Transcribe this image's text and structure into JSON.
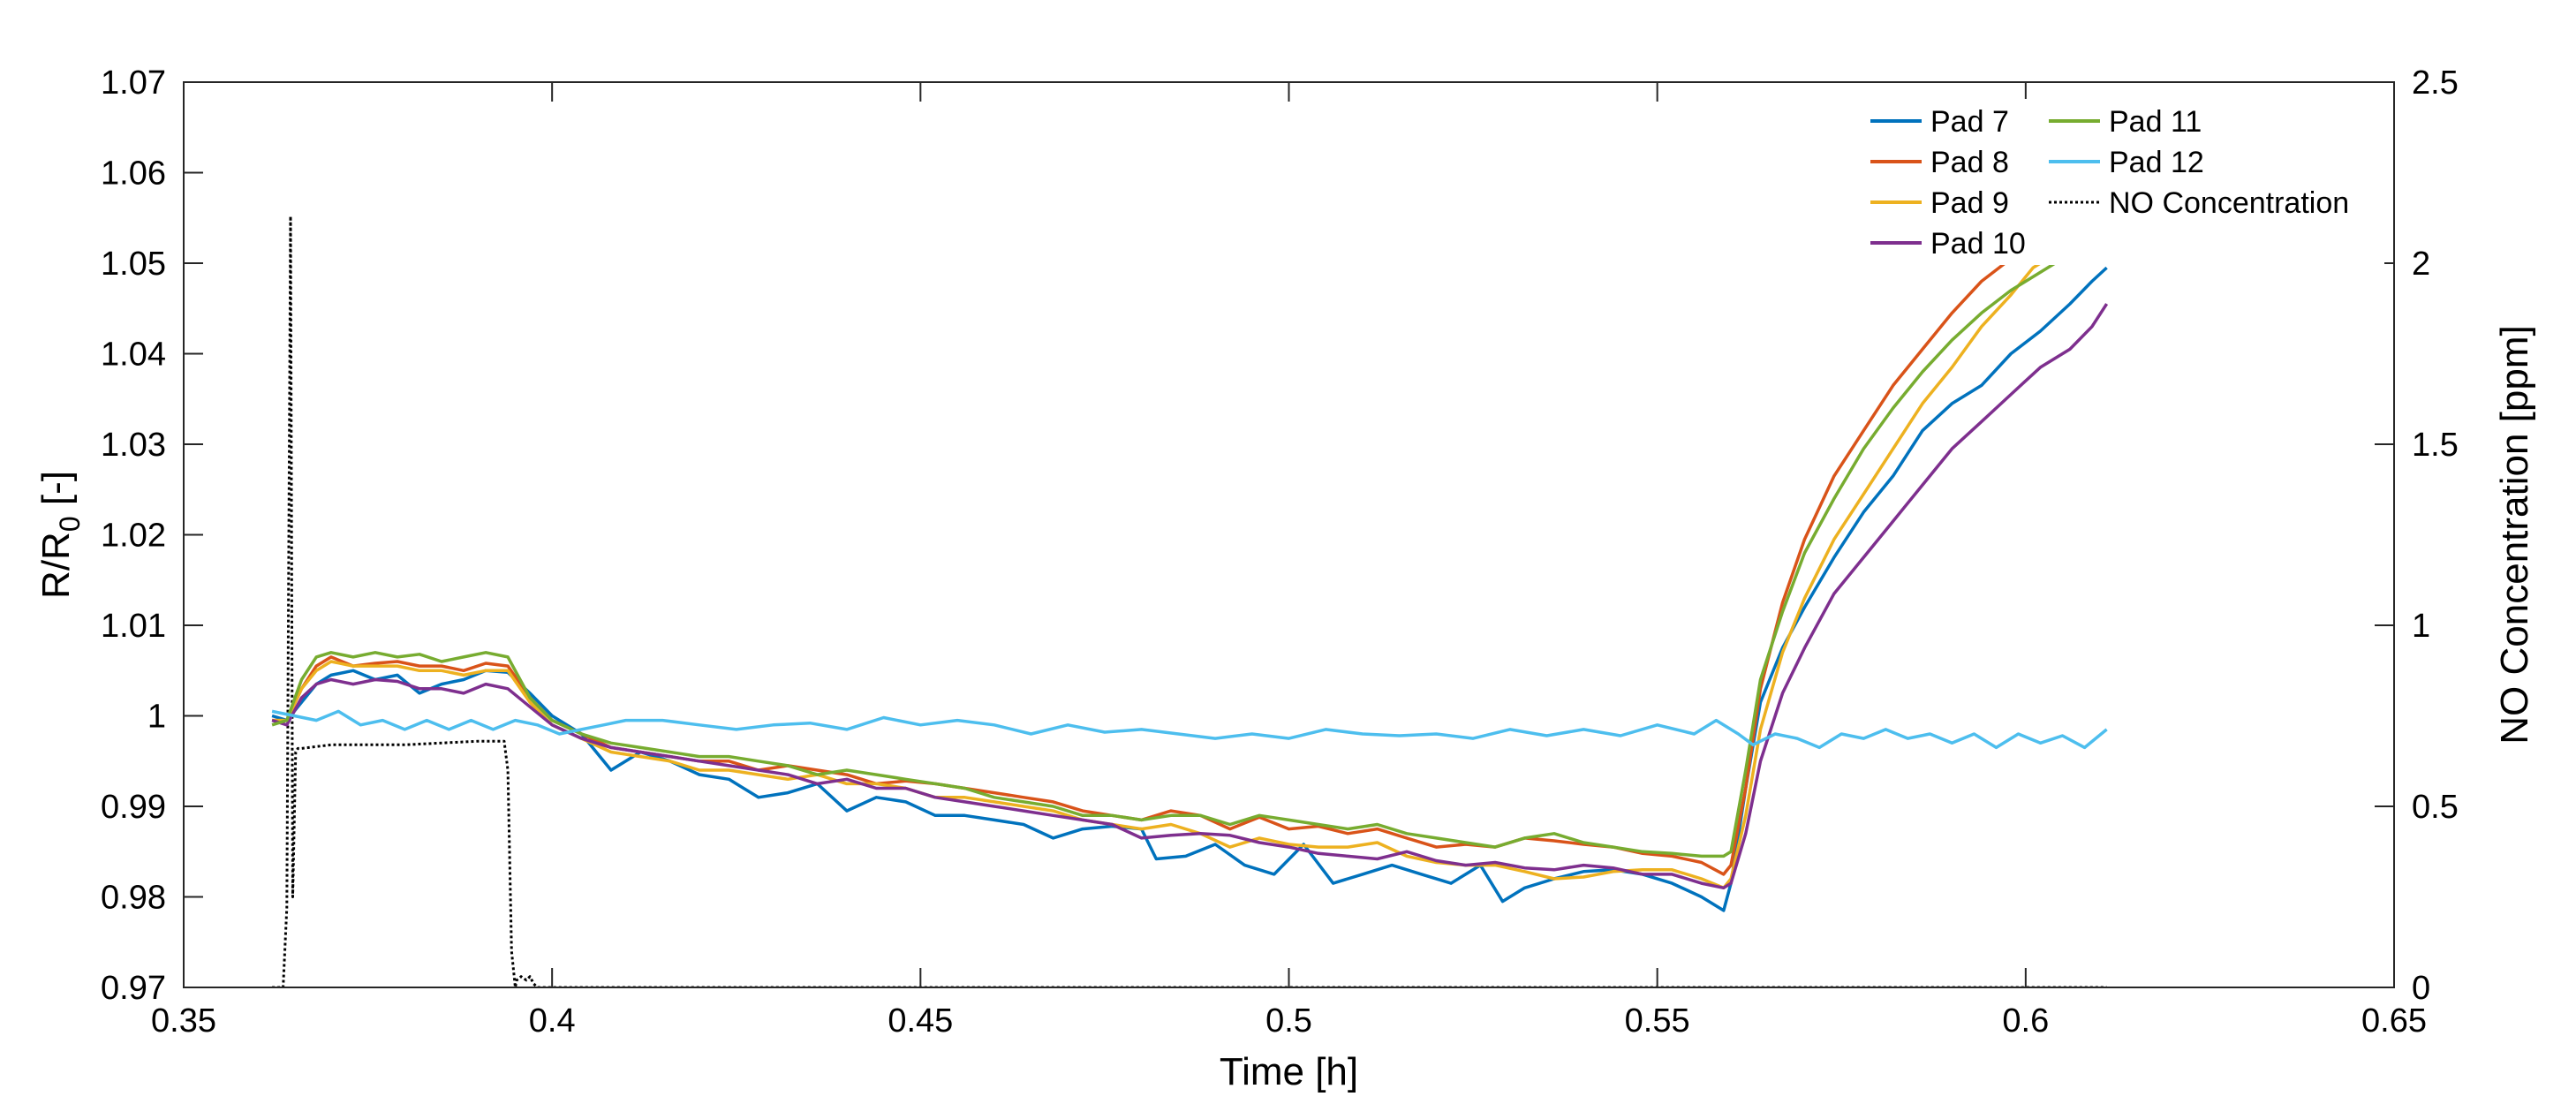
{
  "chart_data": {
    "type": "line",
    "xlabel": "Time [h]",
    "ylabel_left": {
      "main": "R/R",
      "sub": "0",
      "suffix": " [-]"
    },
    "ylabel_right": "NO Concentration [ppm]",
    "xlim": [
      0.35,
      0.65
    ],
    "ylim_left": [
      0.97,
      1.07
    ],
    "ylim_right": [
      0,
      2.5
    ],
    "x_ticks": [
      0.35,
      0.4,
      0.45,
      0.5,
      0.55,
      0.6,
      0.65
    ],
    "x_tick_labels": [
      "0.35",
      "0.4",
      "0.45",
      "0.5",
      "0.55",
      "0.6",
      "0.65"
    ],
    "y_left_ticks": [
      0.97,
      0.98,
      0.99,
      1.0,
      1.01,
      1.02,
      1.03,
      1.04,
      1.05,
      1.06,
      1.07
    ],
    "y_left_tick_labels": [
      "0.97",
      "0.98",
      "0.99",
      "1",
      "1.01",
      "1.02",
      "1.03",
      "1.04",
      "1.05",
      "1.06",
      "1.07"
    ],
    "y_right_ticks": [
      0,
      0.5,
      1,
      1.5,
      2,
      2.5
    ],
    "y_right_tick_labels": [
      "0",
      "0.5",
      "1",
      "1.5",
      "2",
      "2.5"
    ],
    "grid": false,
    "legend_placement": "top-right",
    "series": [
      {
        "name": "Pad 7",
        "color": "#0072BD",
        "axis": "left",
        "style": "solid",
        "x": [
          0.362,
          0.364,
          0.366,
          0.368,
          0.37,
          0.373,
          0.376,
          0.379,
          0.382,
          0.385,
          0.388,
          0.391,
          0.394,
          0.397,
          0.4,
          0.404,
          0.408,
          0.412,
          0.416,
          0.42,
          0.424,
          0.428,
          0.432,
          0.436,
          0.44,
          0.444,
          0.448,
          0.452,
          0.456,
          0.46,
          0.464,
          0.468,
          0.472,
          0.476,
          0.48,
          0.482,
          0.486,
          0.49,
          0.494,
          0.498,
          0.502,
          0.506,
          0.51,
          0.514,
          0.518,
          0.522,
          0.526,
          0.529,
          0.532,
          0.536,
          0.54,
          0.544,
          0.548,
          0.552,
          0.556,
          0.559,
          0.56,
          0.562,
          0.564,
          0.567,
          0.57,
          0.574,
          0.578,
          0.582,
          0.586,
          0.59,
          0.594,
          0.598,
          0.602,
          0.606,
          0.609,
          0.611
        ],
        "y": [
          1.0,
          0.9995,
          1.0015,
          1.0035,
          1.0045,
          1.005,
          1.004,
          1.0045,
          1.0025,
          1.0035,
          1.004,
          1.005,
          1.0048,
          1.0025,
          1.0,
          0.998,
          0.994,
          0.996,
          0.995,
          0.9935,
          0.993,
          0.991,
          0.9915,
          0.9925,
          0.9895,
          0.991,
          0.9905,
          0.989,
          0.989,
          0.9885,
          0.988,
          0.9865,
          0.9875,
          0.9878,
          0.9875,
          0.9842,
          0.9845,
          0.9858,
          0.9835,
          0.9825,
          0.9858,
          0.9815,
          0.9825,
          0.9835,
          0.9825,
          0.9815,
          0.9835,
          0.9795,
          0.981,
          0.982,
          0.9828,
          0.983,
          0.9825,
          0.9815,
          0.98,
          0.9785,
          0.9815,
          0.992,
          1.0015,
          1.0075,
          1.012,
          1.0175,
          1.0225,
          1.0265,
          1.0315,
          1.0345,
          1.0365,
          1.04,
          1.0425,
          1.0455,
          1.048,
          1.0495
        ]
      },
      {
        "name": "Pad 8",
        "color": "#D95319",
        "axis": "left",
        "style": "solid",
        "x": [
          0.362,
          0.364,
          0.366,
          0.368,
          0.37,
          0.373,
          0.376,
          0.379,
          0.382,
          0.385,
          0.388,
          0.391,
          0.394,
          0.397,
          0.4,
          0.404,
          0.408,
          0.412,
          0.416,
          0.42,
          0.424,
          0.428,
          0.432,
          0.436,
          0.44,
          0.444,
          0.448,
          0.452,
          0.456,
          0.46,
          0.464,
          0.468,
          0.472,
          0.476,
          0.48,
          0.484,
          0.488,
          0.492,
          0.496,
          0.5,
          0.504,
          0.508,
          0.512,
          0.516,
          0.52,
          0.524,
          0.528,
          0.532,
          0.536,
          0.54,
          0.544,
          0.548,
          0.552,
          0.556,
          0.559,
          0.56,
          0.562,
          0.564,
          0.567,
          0.57,
          0.574,
          0.578,
          0.582,
          0.586,
          0.59,
          0.594,
          0.598,
          0.601
        ],
        "y": [
          0.9995,
          0.9995,
          1.003,
          1.0055,
          1.0065,
          1.0055,
          1.0058,
          1.006,
          1.0055,
          1.0055,
          1.005,
          1.0058,
          1.0055,
          1.002,
          0.9995,
          0.998,
          0.9965,
          0.996,
          0.9955,
          0.995,
          0.995,
          0.994,
          0.9945,
          0.994,
          0.9935,
          0.9925,
          0.9928,
          0.9925,
          0.992,
          0.9915,
          0.991,
          0.9905,
          0.9895,
          0.989,
          0.9885,
          0.9895,
          0.989,
          0.9875,
          0.9888,
          0.9875,
          0.9878,
          0.987,
          0.9875,
          0.9865,
          0.9855,
          0.9858,
          0.9855,
          0.9865,
          0.9862,
          0.9858,
          0.9855,
          0.9848,
          0.9845,
          0.9838,
          0.9825,
          0.9835,
          0.992,
          1.003,
          1.0125,
          1.0195,
          1.0265,
          1.0315,
          1.0365,
          1.0405,
          1.0445,
          1.048,
          1.0505,
          1.052
        ]
      },
      {
        "name": "Pad 9",
        "color": "#EDB120",
        "axis": "left",
        "style": "solid",
        "x": [
          0.362,
          0.364,
          0.366,
          0.368,
          0.37,
          0.373,
          0.376,
          0.379,
          0.382,
          0.385,
          0.388,
          0.391,
          0.394,
          0.397,
          0.4,
          0.404,
          0.408,
          0.412,
          0.416,
          0.42,
          0.424,
          0.428,
          0.432,
          0.436,
          0.44,
          0.444,
          0.448,
          0.452,
          0.456,
          0.46,
          0.464,
          0.468,
          0.472,
          0.476,
          0.48,
          0.484,
          0.488,
          0.492,
          0.496,
          0.5,
          0.504,
          0.508,
          0.512,
          0.516,
          0.52,
          0.524,
          0.528,
          0.532,
          0.536,
          0.54,
          0.544,
          0.548,
          0.552,
          0.556,
          0.559,
          0.56,
          0.562,
          0.564,
          0.567,
          0.57,
          0.574,
          0.578,
          0.582,
          0.586,
          0.59,
          0.594,
          0.598,
          0.601,
          0.603
        ],
        "y": [
          0.9995,
          0.9995,
          1.003,
          1.005,
          1.006,
          1.0055,
          1.0055,
          1.0055,
          1.005,
          1.005,
          1.0045,
          1.005,
          1.005,
          1.0015,
          0.999,
          0.9975,
          0.996,
          0.9955,
          0.995,
          0.994,
          0.994,
          0.9935,
          0.993,
          0.9935,
          0.9925,
          0.9925,
          0.992,
          0.991,
          0.991,
          0.9905,
          0.99,
          0.9895,
          0.9885,
          0.988,
          0.9875,
          0.988,
          0.987,
          0.9855,
          0.9865,
          0.9858,
          0.9855,
          0.9855,
          0.986,
          0.9845,
          0.9838,
          0.9835,
          0.9835,
          0.9828,
          0.982,
          0.9822,
          0.9828,
          0.983,
          0.983,
          0.982,
          0.981,
          0.982,
          0.989,
          0.9985,
          1.007,
          1.013,
          1.0195,
          1.0245,
          1.0295,
          1.0345,
          1.0385,
          1.043,
          1.0465,
          1.0495,
          1.0505
        ]
      },
      {
        "name": "Pad 10",
        "color": "#7E2F8E",
        "axis": "left",
        "style": "solid",
        "x": [
          0.362,
          0.364,
          0.366,
          0.368,
          0.37,
          0.373,
          0.376,
          0.379,
          0.382,
          0.385,
          0.388,
          0.391,
          0.394,
          0.397,
          0.4,
          0.404,
          0.408,
          0.412,
          0.416,
          0.42,
          0.424,
          0.428,
          0.432,
          0.436,
          0.44,
          0.444,
          0.448,
          0.452,
          0.456,
          0.46,
          0.464,
          0.468,
          0.472,
          0.476,
          0.48,
          0.484,
          0.488,
          0.492,
          0.496,
          0.5,
          0.504,
          0.508,
          0.512,
          0.516,
          0.52,
          0.524,
          0.528,
          0.532,
          0.536,
          0.54,
          0.544,
          0.548,
          0.552,
          0.556,
          0.559,
          0.56,
          0.562,
          0.564,
          0.567,
          0.57,
          0.574,
          0.578,
          0.582,
          0.586,
          0.59,
          0.594,
          0.598,
          0.602,
          0.606,
          0.609,
          0.611
        ],
        "y": [
          0.9995,
          0.999,
          1.002,
          1.0035,
          1.004,
          1.0035,
          1.004,
          1.0038,
          1.003,
          1.003,
          1.0025,
          1.0035,
          1.003,
          1.001,
          0.999,
          0.9975,
          0.9965,
          0.996,
          0.9955,
          0.995,
          0.9945,
          0.994,
          0.9935,
          0.9925,
          0.993,
          0.992,
          0.992,
          0.991,
          0.9905,
          0.99,
          0.9895,
          0.989,
          0.9885,
          0.988,
          0.9865,
          0.9868,
          0.987,
          0.9868,
          0.986,
          0.9855,
          0.9848,
          0.9845,
          0.9842,
          0.985,
          0.984,
          0.9835,
          0.9838,
          0.9832,
          0.983,
          0.9835,
          0.9832,
          0.9825,
          0.9825,
          0.9815,
          0.981,
          0.9815,
          0.987,
          0.995,
          1.0025,
          1.0075,
          1.0135,
          1.0175,
          1.0215,
          1.0255,
          1.0295,
          1.0325,
          1.0355,
          1.0385,
          1.0405,
          1.043,
          1.0455
        ]
      },
      {
        "name": "Pad 11",
        "color": "#77AC30",
        "axis": "left",
        "style": "solid",
        "x": [
          0.362,
          0.364,
          0.366,
          0.368,
          0.37,
          0.373,
          0.376,
          0.379,
          0.382,
          0.385,
          0.388,
          0.391,
          0.394,
          0.397,
          0.4,
          0.404,
          0.408,
          0.412,
          0.416,
          0.42,
          0.424,
          0.428,
          0.432,
          0.436,
          0.44,
          0.444,
          0.448,
          0.452,
          0.456,
          0.46,
          0.464,
          0.468,
          0.472,
          0.476,
          0.48,
          0.484,
          0.488,
          0.492,
          0.496,
          0.5,
          0.504,
          0.508,
          0.512,
          0.516,
          0.52,
          0.524,
          0.528,
          0.532,
          0.536,
          0.54,
          0.544,
          0.548,
          0.552,
          0.556,
          0.559,
          0.56,
          0.562,
          0.564,
          0.567,
          0.57,
          0.574,
          0.578,
          0.582,
          0.586,
          0.59,
          0.594,
          0.598,
          0.602,
          0.605
        ],
        "y": [
          0.999,
          0.9995,
          1.004,
          1.0065,
          1.007,
          1.0065,
          1.007,
          1.0065,
          1.0068,
          1.006,
          1.0065,
          1.007,
          1.0065,
          1.002,
          0.9995,
          0.998,
          0.997,
          0.9965,
          0.996,
          0.9955,
          0.9955,
          0.995,
          0.9945,
          0.9935,
          0.994,
          0.9935,
          0.993,
          0.9925,
          0.992,
          0.991,
          0.9905,
          0.99,
          0.989,
          0.989,
          0.9885,
          0.989,
          0.989,
          0.988,
          0.989,
          0.9885,
          0.988,
          0.9875,
          0.988,
          0.987,
          0.9865,
          0.986,
          0.9855,
          0.9865,
          0.987,
          0.986,
          0.9855,
          0.985,
          0.9848,
          0.9845,
          0.9845,
          0.985,
          0.994,
          1.004,
          1.0115,
          1.018,
          1.024,
          1.0295,
          1.034,
          1.038,
          1.0415,
          1.0445,
          1.047,
          1.049,
          1.0505
        ]
      },
      {
        "name": "Pad 12",
        "color": "#4DBEEE",
        "axis": "left",
        "style": "solid",
        "x": [
          0.362,
          0.365,
          0.368,
          0.371,
          0.374,
          0.377,
          0.38,
          0.383,
          0.386,
          0.389,
          0.392,
          0.395,
          0.398,
          0.401,
          0.404,
          0.407,
          0.41,
          0.415,
          0.42,
          0.425,
          0.43,
          0.435,
          0.44,
          0.445,
          0.45,
          0.455,
          0.46,
          0.465,
          0.47,
          0.475,
          0.48,
          0.485,
          0.49,
          0.495,
          0.5,
          0.505,
          0.51,
          0.515,
          0.52,
          0.525,
          0.53,
          0.535,
          0.54,
          0.545,
          0.55,
          0.555,
          0.558,
          0.561,
          0.563,
          0.566,
          0.569,
          0.572,
          0.575,
          0.578,
          0.581,
          0.584,
          0.587,
          0.59,
          0.593,
          0.596,
          0.599,
          0.602,
          0.605,
          0.608,
          0.611
        ],
        "y": [
          1.0005,
          1.0,
          0.9995,
          1.0005,
          0.999,
          0.9995,
          0.9985,
          0.9995,
          0.9985,
          0.9995,
          0.9985,
          0.9995,
          0.999,
          0.998,
          0.9985,
          0.999,
          0.9995,
          0.9995,
          0.999,
          0.9985,
          0.999,
          0.9992,
          0.9985,
          0.9998,
          0.999,
          0.9995,
          0.999,
          0.998,
          0.999,
          0.9982,
          0.9985,
          0.998,
          0.9975,
          0.998,
          0.9975,
          0.9985,
          0.998,
          0.9978,
          0.998,
          0.9975,
          0.9985,
          0.9978,
          0.9985,
          0.9978,
          0.999,
          0.998,
          0.9995,
          0.998,
          0.9968,
          0.998,
          0.9975,
          0.9965,
          0.998,
          0.9975,
          0.9985,
          0.9975,
          0.998,
          0.997,
          0.998,
          0.9965,
          0.998,
          0.997,
          0.9978,
          0.9965,
          0.9985
        ]
      },
      {
        "name": "NO Concentration",
        "color": "#000000",
        "axis": "right",
        "style": "dotted",
        "x": [
          0.362,
          0.3635,
          0.364,
          0.3645,
          0.3648,
          0.3652,
          0.3655,
          0.366,
          0.37,
          0.38,
          0.39,
          0.3935,
          0.394,
          0.3945,
          0.395,
          0.3952,
          0.3958,
          0.3965,
          0.397,
          0.3975,
          0.398,
          0.399,
          0.42,
          0.45,
          0.5,
          0.55,
          0.6,
          0.611
        ],
        "y": [
          0,
          0,
          0.22,
          2.13,
          0.25,
          0.65,
          0.66,
          0.66,
          0.67,
          0.67,
          0.68,
          0.68,
          0.6,
          0.1,
          0,
          0.02,
          0.03,
          0.02,
          0.03,
          0.01,
          0,
          0,
          0,
          0,
          0,
          0,
          0,
          0
        ]
      }
    ]
  }
}
